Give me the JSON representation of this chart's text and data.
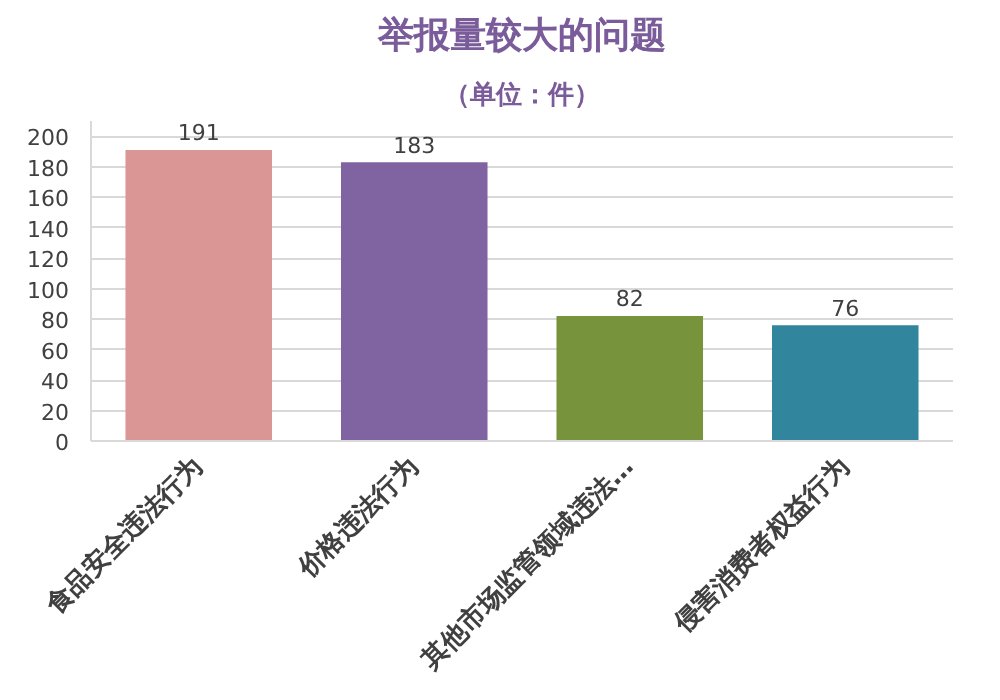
{
  "chart_data": {
    "type": "bar",
    "title": "举报量较大的问题",
    "subtitle": "（单位：件）",
    "categories": [
      "食品安全违法行为",
      "价格违法行为",
      "其他市场监管领域违法…",
      "侵害消费者权益行为"
    ],
    "values": [
      191,
      183,
      82,
      76
    ],
    "colors": [
      "#d99694",
      "#8064a2",
      "#77933c",
      "#31859c"
    ],
    "ylim": [
      0,
      210
    ],
    "yticks": [
      0,
      20,
      40,
      60,
      80,
      100,
      120,
      140,
      160,
      180,
      200
    ],
    "grid": "y",
    "data_labels": true
  }
}
